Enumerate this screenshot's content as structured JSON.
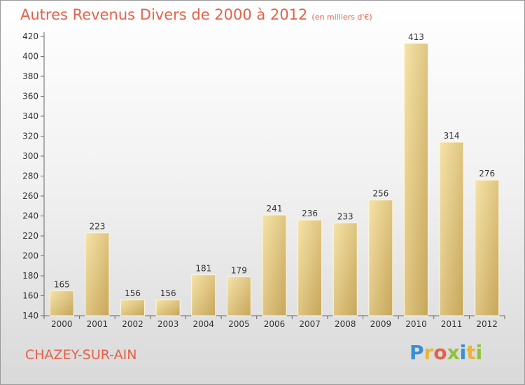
{
  "title": "Autres Revenus Divers de 2000 à 2012",
  "unit": "(en milliers d'€)",
  "location": "CHAZEY-SUR-AIN",
  "logo_text": "Proxiti",
  "colors": {
    "title": "#e2624a",
    "bar_light": "#f4dc9a",
    "bar_dark": "#c9aa5e",
    "logo": [
      "#3a8fd6",
      "#e8b43a",
      "#e2624a",
      "#8fc43a",
      "#3a8fd6",
      "#e8b43a",
      "#8fc43a"
    ]
  },
  "chart_data": {
    "type": "bar",
    "title": "Autres Revenus Divers de 2000 à 2012",
    "categories": [
      "2000",
      "2001",
      "2002",
      "2003",
      "2004",
      "2005",
      "2006",
      "2007",
      "2008",
      "2009",
      "2010",
      "2011",
      "2012"
    ],
    "values": [
      165,
      223,
      156,
      156,
      181,
      179,
      241,
      236,
      233,
      256,
      413,
      314,
      276
    ],
    "ylim": [
      140,
      420
    ],
    "yticks": [
      140,
      160,
      180,
      200,
      220,
      240,
      260,
      280,
      300,
      320,
      340,
      360,
      380,
      400,
      420
    ],
    "xlabel": "",
    "ylabel": "",
    "grid": false,
    "data_labels": true
  }
}
